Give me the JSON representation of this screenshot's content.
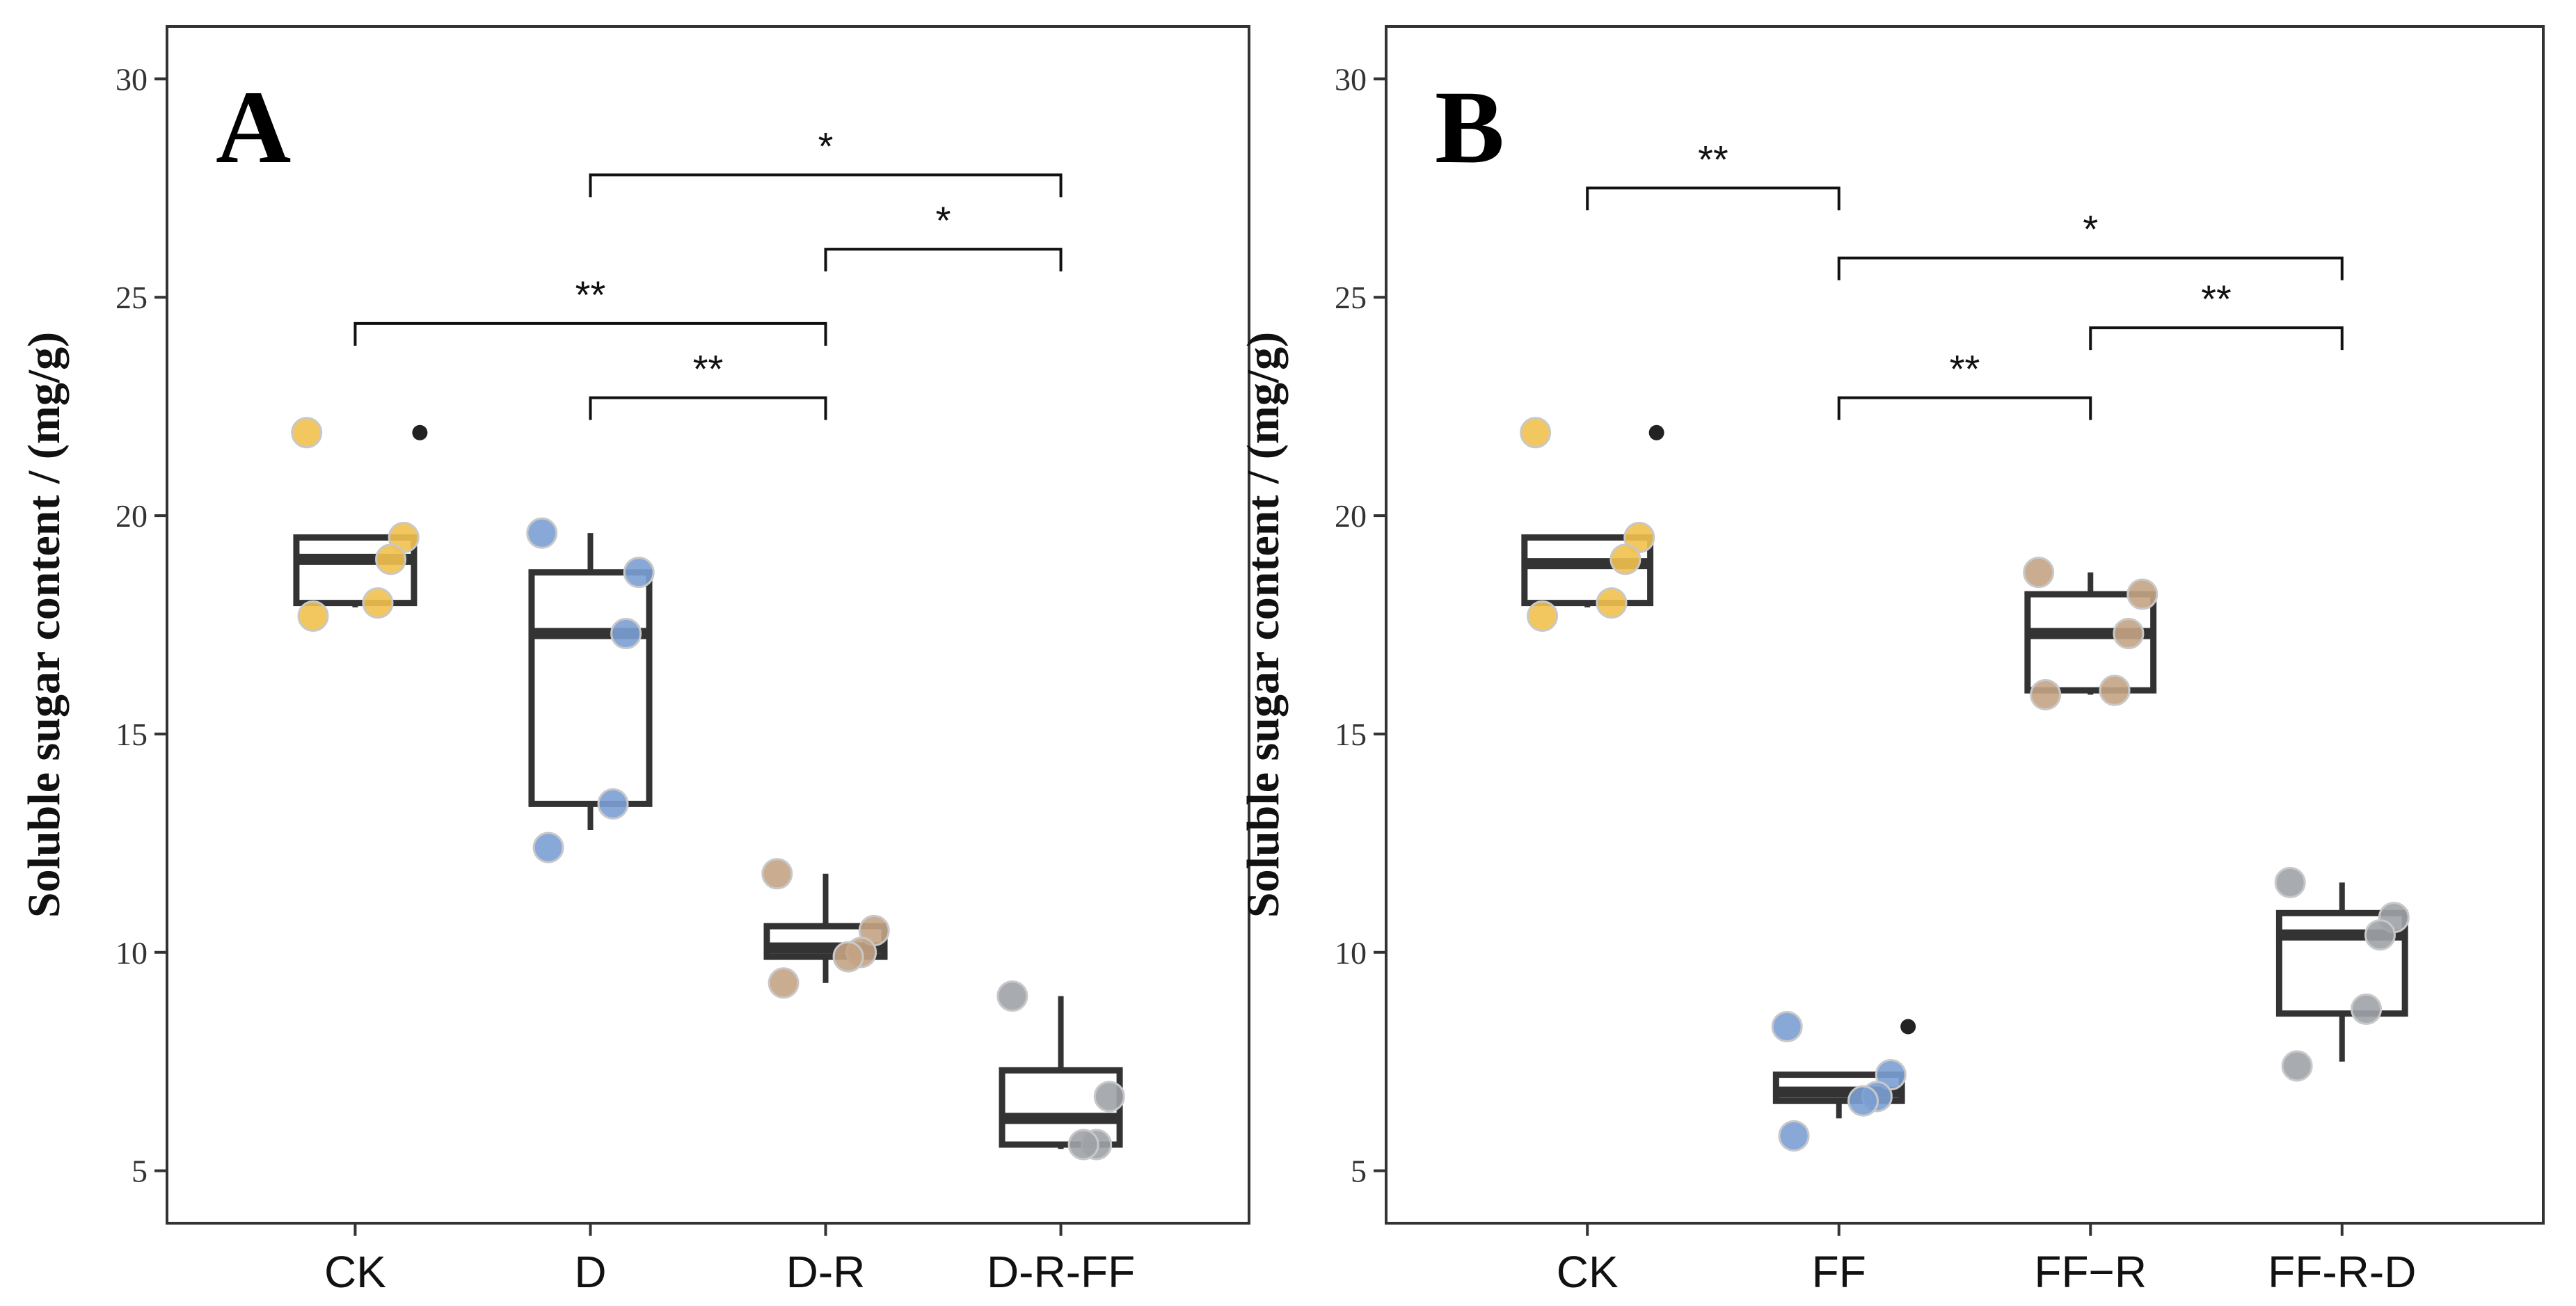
{
  "chart_data": [
    {
      "type": "boxplot",
      "panel_label": "A",
      "ylabel": "Soluble sugar content / (mg/g)",
      "xlabel": "",
      "ylim": [
        3.8,
        31.2
      ],
      "yticks": [
        5,
        10,
        15,
        20,
        25,
        30
      ],
      "ytick_labels": [
        "5",
        "10",
        "15",
        "20",
        "25",
        "30"
      ],
      "categories": [
        "CK",
        "D",
        "D-R",
        "D-R-FF"
      ],
      "colors": [
        "#f2c14e",
        "#7b9fd4",
        "#c4a484",
        "#9ea3a8"
      ],
      "boxes": [
        {
          "min": 17.9,
          "q1": 18.0,
          "median": 19.0,
          "q3": 19.5,
          "max": 19.5
        },
        {
          "min": 12.8,
          "q1": 13.4,
          "median": 17.3,
          "q3": 18.7,
          "max": 19.6
        },
        {
          "min": 9.3,
          "q1": 9.9,
          "median": 10.1,
          "q3": 10.6,
          "max": 11.8
        },
        {
          "min": 5.5,
          "q1": 5.6,
          "median": 6.2,
          "q3": 7.3,
          "max": 9.0
        }
      ],
      "outliers": [
        [
          21.9
        ],
        [],
        [],
        []
      ],
      "points": [
        [
          21.9,
          19.5,
          19.0,
          18.0,
          17.7
        ],
        [
          19.6,
          18.7,
          17.3,
          13.4,
          12.4
        ],
        [
          11.8,
          10.5,
          10.0,
          9.9,
          9.3
        ],
        [
          9.0,
          6.7,
          5.6,
          5.6
        ]
      ],
      "annotations": [
        {
          "from": "D",
          "to": "D-R-FF",
          "y": 27.8,
          "label": "*"
        },
        {
          "from": "D-R",
          "to": "D-R-FF",
          "y": 26.1,
          "label": "*"
        },
        {
          "from": "CK",
          "to": "D-R",
          "y": 24.4,
          "label": "**"
        },
        {
          "from": "D",
          "to": "D-R",
          "y": 22.7,
          "label": "**"
        }
      ]
    },
    {
      "type": "boxplot",
      "panel_label": "B",
      "ylabel": "Soluble sugar content / (mg/g)",
      "xlabel": "",
      "ylim": [
        3.8,
        31.2
      ],
      "yticks": [
        5,
        10,
        15,
        20,
        25,
        30
      ],
      "ytick_labels": [
        "5",
        "10",
        "15",
        "20",
        "25",
        "30"
      ],
      "categories": [
        "CK",
        "FF",
        "FF−R",
        "FF-R-D"
      ],
      "colors": [
        "#f2c14e",
        "#7b9fd4",
        "#c4a484",
        "#9ea3a8"
      ],
      "boxes": [
        {
          "min": 17.9,
          "q1": 18.0,
          "median": 18.9,
          "q3": 19.5,
          "max": 19.5
        },
        {
          "min": 6.2,
          "q1": 6.6,
          "median": 6.8,
          "q3": 7.2,
          "max": 7.2
        },
        {
          "min": 15.9,
          "q1": 16.0,
          "median": 17.3,
          "q3": 18.2,
          "max": 18.7
        },
        {
          "min": 7.5,
          "q1": 8.6,
          "median": 10.4,
          "q3": 10.9,
          "max": 11.6
        }
      ],
      "outliers": [
        [
          21.9
        ],
        [
          8.3
        ],
        [],
        []
      ],
      "points": [
        [
          21.9,
          19.5,
          19.0,
          18.0,
          17.7
        ],
        [
          8.3,
          7.2,
          6.7,
          6.6,
          5.8
        ],
        [
          18.7,
          18.2,
          17.3,
          16.0,
          15.9
        ],
        [
          11.6,
          10.8,
          10.4,
          8.7,
          7.4
        ]
      ],
      "annotations": [
        {
          "from": "CK",
          "to": "FF",
          "y": 27.5,
          "label": "**"
        },
        {
          "from": "FF",
          "to": "FF-R-D",
          "y": 25.9,
          "label": "*"
        },
        {
          "from": "FF−R",
          "to": "FF-R-D",
          "y": 24.3,
          "label": "**"
        },
        {
          "from": "FF",
          "to": "FF−R",
          "y": 22.7,
          "label": "**"
        }
      ]
    }
  ]
}
